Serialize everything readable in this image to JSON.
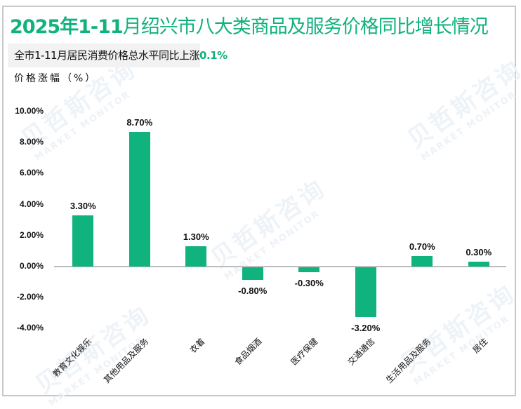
{
  "title": {
    "prefix": "2025年1-11",
    "rest": "月绍兴市八大类商品及服务价格同比增长情况"
  },
  "subtitle": {
    "text": "全市1-11月居民消费价格总水平同比上涨",
    "highlight": "0.1%"
  },
  "y_axis_label": "价格涨幅（%）",
  "watermark": {
    "cn": "贝哲斯咨询",
    "en": "MARKET MONITOR"
  },
  "colors": {
    "accent": "#10b27e",
    "bar": "#10b27e",
    "axis": "#bdbdbd",
    "subtitle_bg": "#f2f2f2",
    "frame": "#c8c8c8"
  },
  "chart_data": {
    "type": "bar",
    "title": "2025年1-11月绍兴市八大类商品及服务价格同比增长情况",
    "subtitle": "全市1-11月居民消费价格总水平同比上涨0.1%",
    "xlabel": "",
    "ylabel": "价格涨幅（%）",
    "ylim": [
      -4,
      10
    ],
    "yticks": [
      "10.00%",
      "8.00%",
      "6.00%",
      "4.00%",
      "2.00%",
      "0.00%",
      "-2.00%",
      "-4.00%"
    ],
    "ytick_values": [
      10,
      8,
      6,
      4,
      2,
      0,
      -2,
      -4
    ],
    "grid": false,
    "legend": null,
    "categories": [
      "教育文化娱乐",
      "其他用品及服务",
      "衣着",
      "食品烟酒",
      "医疗保健",
      "交通通信",
      "生活用品及服务",
      "居住"
    ],
    "values": [
      3.3,
      8.7,
      1.3,
      -0.8,
      -0.3,
      -3.2,
      0.7,
      0.3
    ],
    "data_labels": [
      "3.30%",
      "8.70%",
      "1.30%",
      "-0.80%",
      "-0.30%",
      "-3.20%",
      "0.70%",
      "0.30%"
    ]
  }
}
